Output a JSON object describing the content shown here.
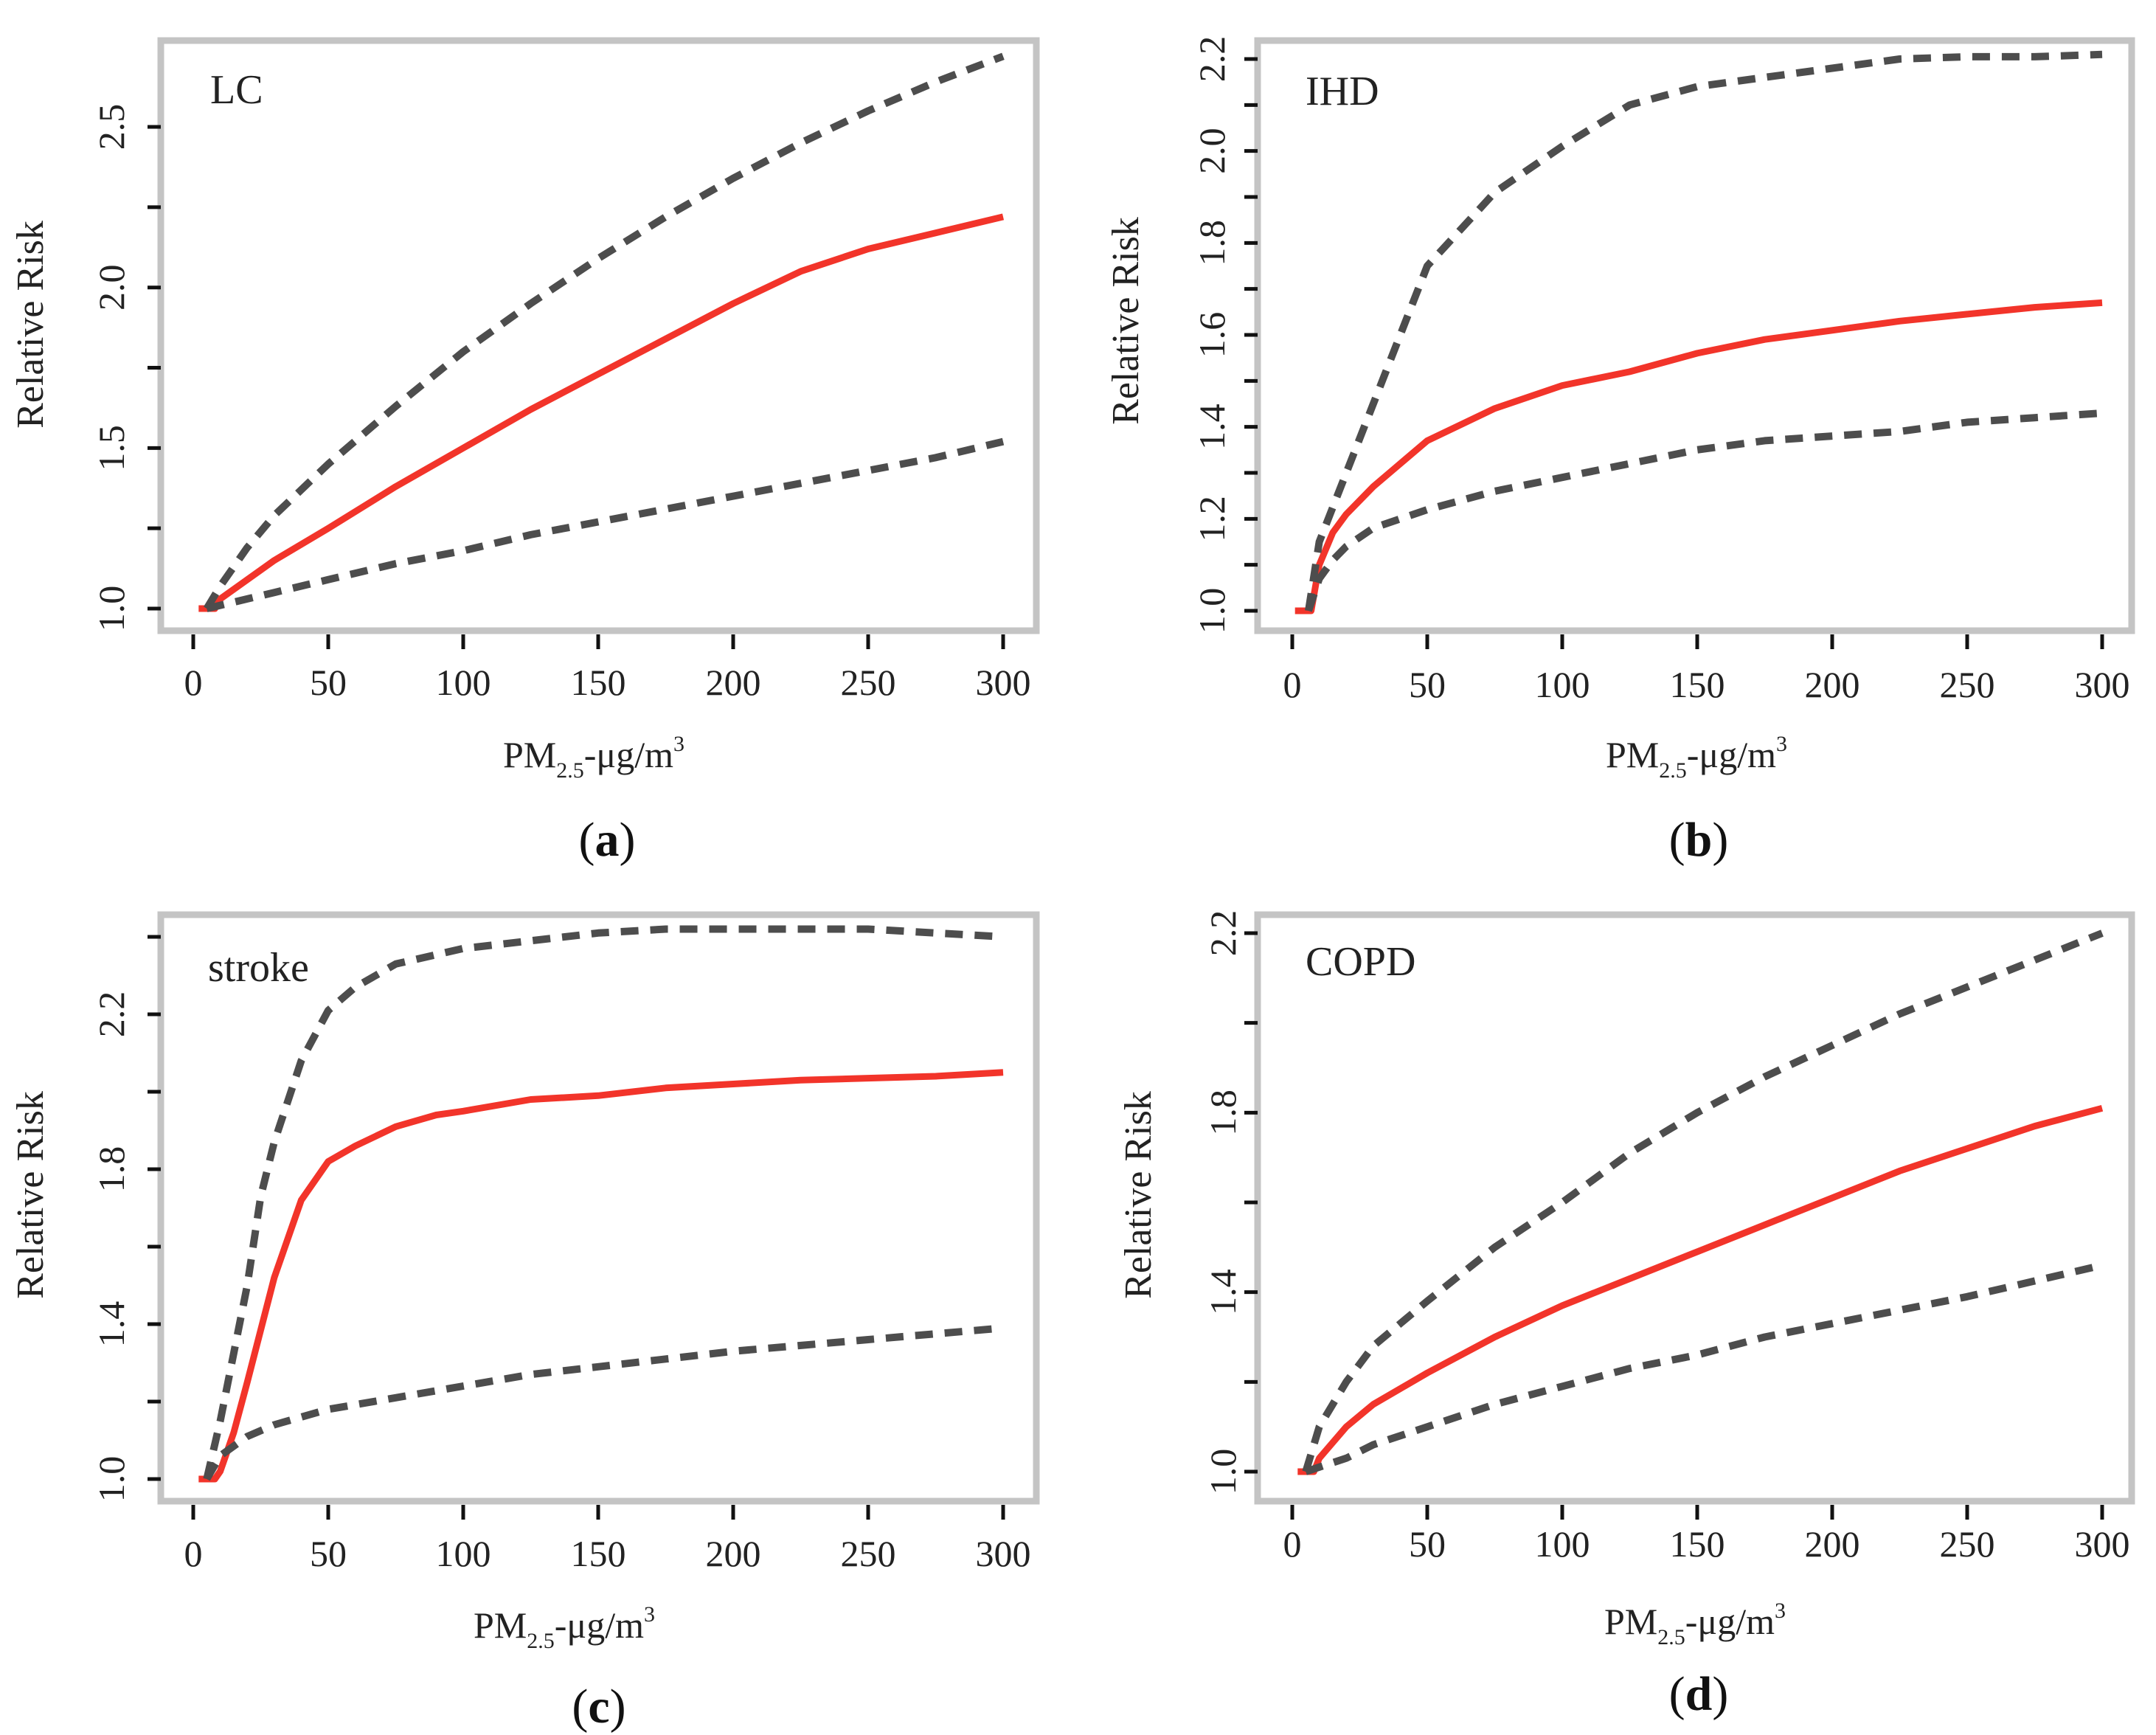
{
  "colors": {
    "frame": "#c4c4c4",
    "central": "#f2342a",
    "bounds": "#4d4d4d",
    "text": "#222222"
  },
  "chart_data": [
    {
      "type": "line",
      "panel_label": "a",
      "title": "LC",
      "xlabel_main": "PM",
      "xlabel_sub": "2.5",
      "xlabel_unit": "-μg/m",
      "xlabel_sup": "3",
      "ylabel": "Relative Risk",
      "xlim": [
        0,
        300
      ],
      "ylim": [
        1.0,
        2.7
      ],
      "xticks": [
        "0",
        "50",
        "100",
        "150",
        "200",
        "250",
        "300"
      ],
      "yticks": [
        "1.0",
        "1.5",
        "2.0",
        "2.5"
      ],
      "series": [
        {
          "name": "relative risk",
          "style": "solid",
          "x": [
            2,
            8,
            10,
            20,
            30,
            50,
            75,
            100,
            125,
            150,
            175,
            200,
            225,
            250,
            275,
            300
          ],
          "y": [
            1.0,
            1.0,
            1.03,
            1.09,
            1.15,
            1.25,
            1.38,
            1.5,
            1.62,
            1.73,
            1.84,
            1.95,
            2.05,
            2.12,
            2.17,
            2.22
          ]
        },
        {
          "name": "upper bound",
          "style": "dashed",
          "x": [
            5,
            10,
            20,
            30,
            50,
            75,
            100,
            125,
            150,
            175,
            200,
            225,
            250,
            275,
            300
          ],
          "y": [
            1.0,
            1.07,
            1.19,
            1.29,
            1.45,
            1.63,
            1.8,
            1.95,
            2.09,
            2.22,
            2.34,
            2.45,
            2.55,
            2.64,
            2.72
          ]
        },
        {
          "name": "lower bound",
          "style": "dashed",
          "x": [
            5,
            10,
            20,
            30,
            50,
            75,
            100,
            125,
            150,
            175,
            200,
            225,
            250,
            275,
            300
          ],
          "y": [
            1.0,
            1.01,
            1.03,
            1.05,
            1.09,
            1.14,
            1.18,
            1.23,
            1.27,
            1.31,
            1.35,
            1.39,
            1.43,
            1.47,
            1.52
          ]
        }
      ]
    },
    {
      "type": "line",
      "panel_label": "b",
      "title": "IHD",
      "xlabel_main": "PM",
      "xlabel_sub": "2.5",
      "xlabel_unit": "-μg/m",
      "xlabel_sup": "3",
      "ylabel": "Relative Risk",
      "xlim": [
        0,
        300
      ],
      "ylim": [
        1.0,
        2.2
      ],
      "xticks": [
        "0",
        "50",
        "100",
        "150",
        "200",
        "250",
        "300"
      ],
      "yticks": [
        "1.0",
        "1.2",
        "1.4",
        "1.6",
        "1.8",
        "2.0",
        "2.2"
      ],
      "series": [
        {
          "name": "relative risk",
          "style": "solid",
          "x": [
            1,
            7,
            10,
            15,
            20,
            30,
            50,
            75,
            100,
            125,
            150,
            175,
            200,
            225,
            250,
            275,
            300
          ],
          "y": [
            1.0,
            1.0,
            1.1,
            1.17,
            1.21,
            1.27,
            1.37,
            1.44,
            1.49,
            1.52,
            1.56,
            1.59,
            1.61,
            1.63,
            1.645,
            1.66,
            1.67
          ]
        },
        {
          "name": "upper bound",
          "style": "dashed",
          "x": [
            6,
            10,
            20,
            30,
            50,
            75,
            100,
            125,
            150,
            175,
            200,
            225,
            250,
            275,
            300
          ],
          "y": [
            1.0,
            1.15,
            1.3,
            1.45,
            1.75,
            1.91,
            2.01,
            2.1,
            2.14,
            2.16,
            2.18,
            2.2,
            2.205,
            2.205,
            2.21
          ]
        },
        {
          "name": "lower bound",
          "style": "dashed",
          "x": [
            6,
            10,
            15,
            20,
            30,
            50,
            75,
            100,
            125,
            150,
            175,
            200,
            225,
            250,
            275,
            300
          ],
          "y": [
            1.0,
            1.07,
            1.11,
            1.14,
            1.18,
            1.22,
            1.26,
            1.29,
            1.32,
            1.35,
            1.37,
            1.38,
            1.39,
            1.41,
            1.42,
            1.43
          ]
        }
      ]
    },
    {
      "type": "line",
      "panel_label": "c",
      "title": "stroke",
      "xlabel_main": "PM",
      "xlabel_sub": "2.5",
      "xlabel_unit": "-μg/m",
      "xlabel_sup": "3",
      "ylabel": "Relative Risk",
      "xlim": [
        0,
        300
      ],
      "ylim": [
        1.0,
        2.4
      ],
      "xticks": [
        "0",
        "50",
        "100",
        "150",
        "200",
        "250",
        "300"
      ],
      "yticks": [
        "1.0",
        "1.4",
        "1.8",
        "2.2"
      ],
      "series": [
        {
          "name": "relative risk",
          "style": "solid",
          "x": [
            2,
            8,
            10,
            15,
            20,
            30,
            40,
            50,
            60,
            75,
            90,
            100,
            125,
            150,
            175,
            200,
            225,
            250,
            275,
            300
          ],
          "y": [
            1.0,
            1.0,
            1.02,
            1.12,
            1.25,
            1.52,
            1.72,
            1.82,
            1.86,
            1.91,
            1.94,
            1.95,
            1.98,
            1.99,
            2.01,
            2.02,
            2.03,
            2.035,
            2.04,
            2.05
          ]
        },
        {
          "name": "upper bound",
          "style": "dashed",
          "x": [
            5,
            10,
            20,
            25,
            30,
            40,
            50,
            60,
            75,
            100,
            125,
            150,
            175,
            200,
            250,
            300
          ],
          "y": [
            1.0,
            1.15,
            1.5,
            1.73,
            1.87,
            2.08,
            2.21,
            2.27,
            2.33,
            2.37,
            2.39,
            2.41,
            2.42,
            2.42,
            2.42,
            2.4
          ]
        },
        {
          "name": "lower bound",
          "style": "dashed",
          "x": [
            5,
            10,
            20,
            30,
            50,
            75,
            100,
            125,
            150,
            175,
            200,
            250,
            300
          ],
          "y": [
            1.0,
            1.06,
            1.11,
            1.14,
            1.18,
            1.21,
            1.24,
            1.27,
            1.29,
            1.31,
            1.33,
            1.36,
            1.39
          ]
        }
      ]
    },
    {
      "type": "line",
      "panel_label": "d",
      "title": "COPD",
      "xlabel_main": "PM",
      "xlabel_sub": "2.5",
      "xlabel_unit": "-μg/m",
      "xlabel_sup": "3",
      "ylabel": "Relative Risk",
      "xlim": [
        0,
        300
      ],
      "ylim": [
        1.0,
        2.2
      ],
      "xticks": [
        "0",
        "50",
        "100",
        "150",
        "200",
        "250",
        "300"
      ],
      "yticks": [
        "1.0",
        "1.4",
        "1.8",
        "2.2"
      ],
      "series": [
        {
          "name": "relative risk",
          "style": "solid",
          "x": [
            2,
            8,
            10,
            20,
            30,
            50,
            75,
            100,
            125,
            150,
            175,
            200,
            225,
            250,
            275,
            300
          ],
          "y": [
            1.0,
            1.0,
            1.03,
            1.1,
            1.15,
            1.22,
            1.3,
            1.37,
            1.43,
            1.49,
            1.55,
            1.61,
            1.67,
            1.72,
            1.77,
            1.81
          ]
        },
        {
          "name": "upper bound",
          "style": "dashed",
          "x": [
            5,
            10,
            20,
            30,
            50,
            75,
            100,
            125,
            150,
            175,
            200,
            225,
            250,
            275,
            300
          ],
          "y": [
            1.0,
            1.1,
            1.2,
            1.28,
            1.38,
            1.5,
            1.6,
            1.71,
            1.8,
            1.88,
            1.95,
            2.02,
            2.08,
            2.14,
            2.2
          ]
        },
        {
          "name": "lower bound",
          "style": "dashed",
          "x": [
            5,
            10,
            20,
            30,
            50,
            75,
            100,
            125,
            150,
            175,
            200,
            250,
            300
          ],
          "y": [
            1.0,
            1.01,
            1.03,
            1.06,
            1.1,
            1.15,
            1.19,
            1.23,
            1.26,
            1.3,
            1.33,
            1.39,
            1.46
          ]
        }
      ]
    }
  ]
}
